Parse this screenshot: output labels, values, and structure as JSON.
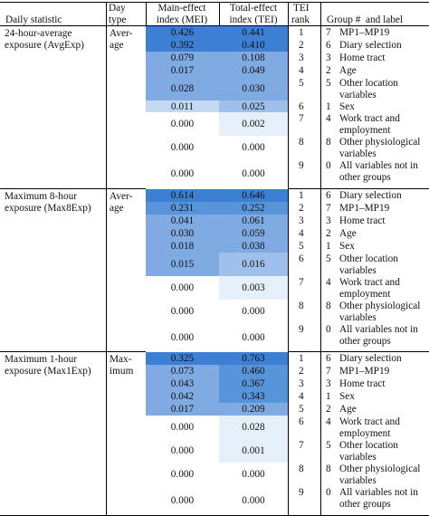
{
  "header": {
    "daily_statistic": "Daily statistic",
    "day_type": [
      "Day",
      "type"
    ],
    "mei": [
      "Main-effect",
      "index (MEI)"
    ],
    "tei": [
      "Total-effect",
      "index (TEI)"
    ],
    "tei_rank": [
      "TEI",
      "rank"
    ],
    "group_label": "Group #  and label"
  },
  "sections": [
    {
      "statistic": [
        "24-hour-average",
        "exposure (AvgExp)"
      ],
      "day_type": [
        "Aver-",
        "age"
      ],
      "rows": [
        {
          "mei": "0.426",
          "tei": "0.441",
          "rank": "1",
          "group": "7",
          "label": [
            "MP1–MP19"
          ]
        },
        {
          "mei": "0.392",
          "tei": "0.410",
          "rank": "2",
          "group": "6",
          "label": [
            "Diary selection"
          ]
        },
        {
          "mei": "0.079",
          "tei": "0.108",
          "rank": "3",
          "group": "3",
          "label": [
            "Home tract"
          ]
        },
        {
          "mei": "0.017",
          "tei": "0.049",
          "rank": "4",
          "group": "2",
          "label": [
            "Age"
          ]
        },
        {
          "mei": "0.028",
          "tei": "0.030",
          "rank": "5",
          "group": "5",
          "label": [
            "Other location",
            "variables"
          ]
        },
        {
          "mei": "0.011",
          "tei": "0.025",
          "rank": "6",
          "group": "1",
          "label": [
            "Sex"
          ]
        },
        {
          "mei": "0.000",
          "tei": "0.002",
          "rank": "7",
          "group": "4",
          "label": [
            "Work tract and",
            "employment"
          ]
        },
        {
          "mei": "0.000",
          "tei": "0.000",
          "rank": "8",
          "group": "8",
          "label": [
            "Other physiological",
            "variables"
          ]
        },
        {
          "mei": "0.000",
          "tei": "0.000",
          "rank": "9",
          "group": "0",
          "label": [
            "All variables not in",
            "other groups"
          ]
        }
      ]
    },
    {
      "statistic": [
        "Maximum 8-hour",
        "exposure (Max8Exp)"
      ],
      "day_type": [
        "Aver-",
        "age"
      ],
      "rows": [
        {
          "mei": "0.614",
          "tei": "0.646",
          "rank": "1",
          "group": "6",
          "label": [
            "Diary selection"
          ]
        },
        {
          "mei": "0.231",
          "tei": "0.252",
          "rank": "2",
          "group": "7",
          "label": [
            "MP1–MP19"
          ]
        },
        {
          "mei": "0.041",
          "tei": "0.061",
          "rank": "3",
          "group": "3",
          "label": [
            "Home tract"
          ]
        },
        {
          "mei": "0.030",
          "tei": "0.059",
          "rank": "4",
          "group": "2",
          "label": [
            "Age"
          ]
        },
        {
          "mei": "0.018",
          "tei": "0.038",
          "rank": "5",
          "group": "1",
          "label": [
            "Sex"
          ]
        },
        {
          "mei": "0.015",
          "tei": "0.016",
          "rank": "6",
          "group": "5",
          "label": [
            "Other location",
            "variables"
          ]
        },
        {
          "mei": "0.000",
          "tei": "0.003",
          "rank": "7",
          "group": "4",
          "label": [
            "Work tract and",
            "employment"
          ]
        },
        {
          "mei": "0.000",
          "tei": "0.000",
          "rank": "8",
          "group": "8",
          "label": [
            "Other physiological",
            "variables"
          ]
        },
        {
          "mei": "0.000",
          "tei": "0.000",
          "rank": "9",
          "group": "0",
          "label": [
            "All variables not in",
            "other groups"
          ]
        }
      ]
    },
    {
      "statistic": [
        "Maximum 1-hour",
        "exposure (Max1Exp)"
      ],
      "day_type": [
        "Max-",
        "imum"
      ],
      "rows": [
        {
          "mei": "0.325",
          "tei": "0.763",
          "rank": "1",
          "group": "6",
          "label": [
            "Diary selection"
          ]
        },
        {
          "mei": "0.073",
          "tei": "0.460",
          "rank": "2",
          "group": "7",
          "label": [
            "MP1–MP19"
          ]
        },
        {
          "mei": "0.043",
          "tei": "0.367",
          "rank": "3",
          "group": "3",
          "label": [
            "Home tract"
          ]
        },
        {
          "mei": "0.042",
          "tei": "0.343",
          "rank": "4",
          "group": "1",
          "label": [
            "Sex"
          ]
        },
        {
          "mei": "0.017",
          "tei": "0.209",
          "rank": "5",
          "group": "2",
          "label": [
            "Age"
          ]
        },
        {
          "mei": "0.000",
          "tei": "0.028",
          "rank": "6",
          "group": "4",
          "label": [
            "Work tract and",
            "employment"
          ]
        },
        {
          "mei": "0.000",
          "tei": "0.001",
          "rank": "7",
          "group": "5",
          "label": [
            "Other location",
            "variables"
          ]
        },
        {
          "mei": "0.000",
          "tei": "0.000",
          "rank": "8",
          "group": "8",
          "label": [
            "Other physiological",
            "variables"
          ]
        },
        {
          "mei": "0.000",
          "tei": "0.000",
          "rank": "9",
          "group": "0",
          "label": [
            "All variables not in",
            "other groups"
          ]
        }
      ]
    }
  ],
  "shade_colors": {
    "c1": "#3d7fd3",
    "c2": "#5894d9",
    "c3": "#7faae2",
    "c4": "#9fc0ea",
    "c5": "#c4daf3",
    "c6": "#e6f0fb",
    "c0": "#ffffff"
  }
}
